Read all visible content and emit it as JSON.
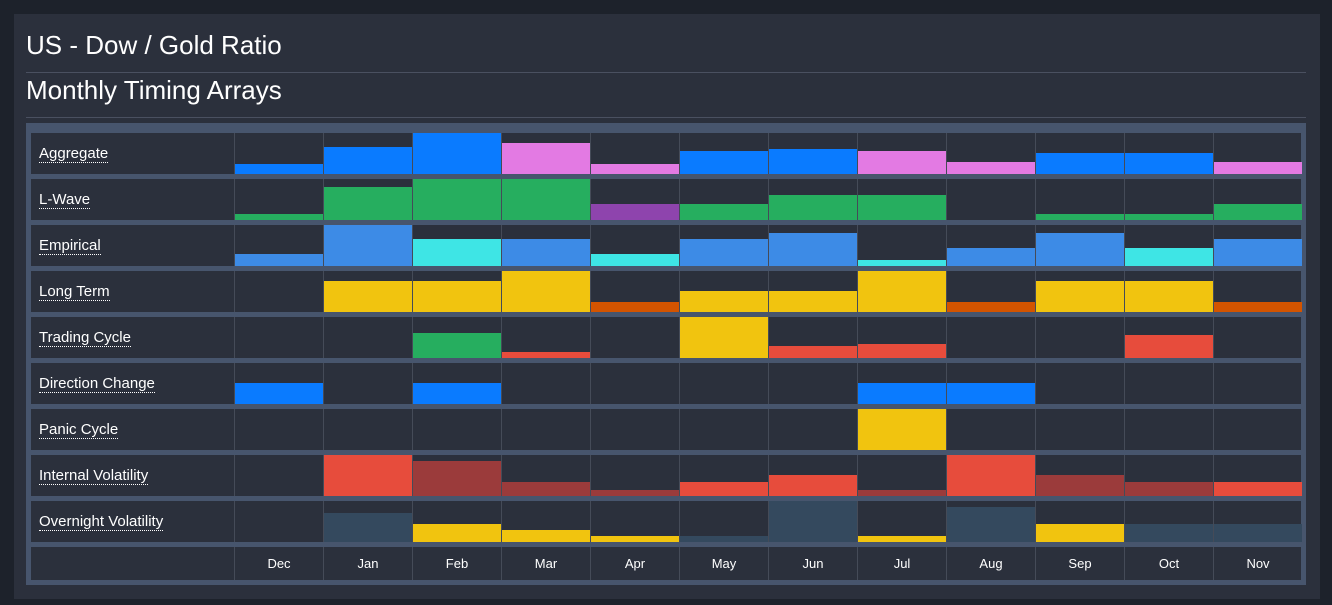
{
  "header": {
    "title": "US - Dow / Gold Ratio",
    "subtitle": "Monthly Timing Arrays"
  },
  "colors": {
    "blue": "#0a7bff",
    "lightblue": "#3d8be6",
    "cyan": "#3ee5e5",
    "green": "#26ae5f",
    "purple": "#8e44ad",
    "pink": "#e37ae3",
    "yellow": "#f1c40f",
    "orange": "#d35400",
    "red": "#e74c3c",
    "darkred": "#9b3b3b",
    "slate": "#34495e",
    "panel": "#2b303c",
    "frame": "#47556d"
  },
  "chart_data": {
    "type": "heatmap",
    "title": "US - Dow / Gold Ratio",
    "subtitle": "Monthly Timing Arrays",
    "categories": [
      "Dec",
      "Jan",
      "Feb",
      "Mar",
      "Apr",
      "May",
      "Jun",
      "Jul",
      "Aug",
      "Sep",
      "Oct",
      "Nov"
    ],
    "value_range": [
      0,
      1
    ],
    "series": [
      {
        "name": "Aggregate",
        "values": [
          0.25,
          0.65,
          1.0,
          0.75,
          0.25,
          0.55,
          0.6,
          0.55,
          0.3,
          0.5,
          0.5,
          0.3
        ],
        "colors": [
          "blue",
          "blue",
          "blue",
          "pink",
          "pink",
          "blue",
          "blue",
          "pink",
          "pink",
          "blue",
          "blue",
          "pink"
        ]
      },
      {
        "name": "L-Wave",
        "values": [
          0.15,
          0.8,
          1.0,
          1.0,
          0.4,
          0.4,
          0.6,
          0.6,
          0.0,
          0.15,
          0.15,
          0.4
        ],
        "colors": [
          "green",
          "green",
          "green",
          "green",
          "purple",
          "green",
          "green",
          "green",
          "green",
          "green",
          "green",
          "green"
        ]
      },
      {
        "name": "Empirical",
        "values": [
          0.3,
          1.0,
          0.65,
          0.65,
          0.3,
          0.65,
          0.8,
          0.15,
          0.45,
          0.8,
          0.45,
          0.65
        ],
        "colors": [
          "lightblue",
          "lightblue",
          "cyan",
          "lightblue",
          "cyan",
          "lightblue",
          "lightblue",
          "cyan",
          "lightblue",
          "lightblue",
          "cyan",
          "lightblue"
        ]
      },
      {
        "name": "Long Term",
        "values": [
          0.0,
          0.75,
          0.75,
          1.0,
          0.25,
          0.5,
          0.5,
          1.0,
          0.25,
          0.75,
          0.75,
          0.25
        ],
        "colors": [
          "yellow",
          "yellow",
          "yellow",
          "yellow",
          "orange",
          "yellow",
          "yellow",
          "yellow",
          "orange",
          "yellow",
          "yellow",
          "orange"
        ]
      },
      {
        "name": "Trading Cycle",
        "values": [
          0.0,
          0.0,
          0.6,
          0.15,
          0.0,
          1.0,
          0.3,
          0.35,
          0.0,
          0.0,
          0.55,
          0.0
        ],
        "colors": [
          "green",
          "green",
          "green",
          "red",
          "red",
          "yellow",
          "red",
          "red",
          "red",
          "red",
          "red",
          "red"
        ]
      },
      {
        "name": "Direction Change",
        "values": [
          0.5,
          0.0,
          0.5,
          0.0,
          0.0,
          0.0,
          0.0,
          0.5,
          0.5,
          0.0,
          0.0,
          0.0
        ],
        "colors": [
          "blue",
          "blue",
          "blue",
          "blue",
          "blue",
          "blue",
          "blue",
          "blue",
          "blue",
          "blue",
          "blue",
          "blue"
        ]
      },
      {
        "name": "Panic Cycle",
        "values": [
          0.0,
          0.0,
          0.0,
          0.0,
          0.0,
          0.0,
          0.0,
          1.0,
          0.0,
          0.0,
          0.0,
          0.0
        ],
        "colors": [
          "yellow",
          "yellow",
          "yellow",
          "yellow",
          "yellow",
          "yellow",
          "yellow",
          "yellow",
          "yellow",
          "yellow",
          "yellow",
          "yellow"
        ]
      },
      {
        "name": "Internal Volatility",
        "values": [
          0.0,
          1.0,
          0.85,
          0.35,
          0.15,
          0.35,
          0.5,
          0.15,
          1.0,
          0.5,
          0.35,
          0.35
        ],
        "colors": [
          "red",
          "red",
          "darkred",
          "darkred",
          "darkred",
          "red",
          "red",
          "darkred",
          "red",
          "darkred",
          "darkred",
          "red"
        ]
      },
      {
        "name": "Overnight Volatility",
        "values": [
          0.0,
          0.7,
          0.45,
          0.3,
          0.15,
          0.15,
          1.0,
          0.15,
          0.85,
          0.45,
          0.45,
          0.45
        ],
        "colors": [
          "slate",
          "slate",
          "yellow",
          "yellow",
          "yellow",
          "slate",
          "slate",
          "yellow",
          "slate",
          "yellow",
          "slate",
          "slate"
        ]
      }
    ]
  }
}
